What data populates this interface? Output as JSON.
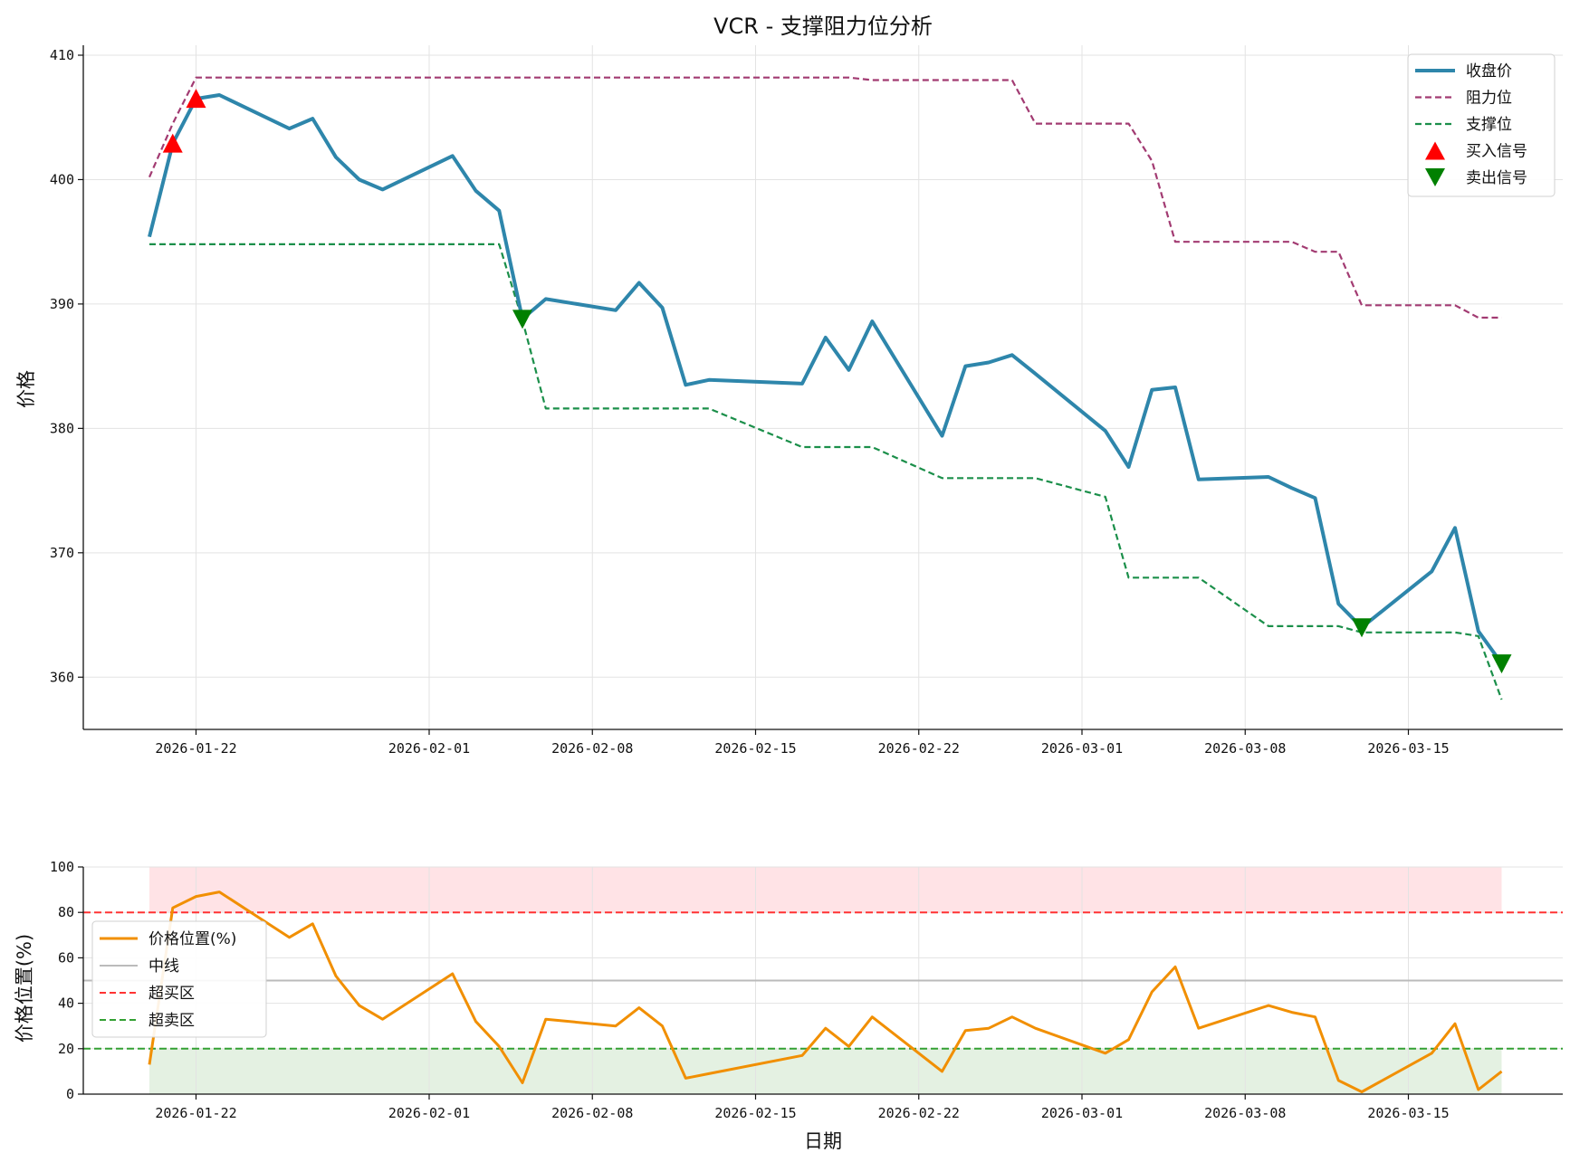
{
  "chart_data": [
    {
      "type": "line",
      "title": "VCR - 支撑阻力位分析",
      "xlabel": "",
      "ylabel": "价格",
      "x_tick_labels": [
        "2026-01-22",
        "2026-02-01",
        "2026-02-08",
        "2026-02-15",
        "2026-02-22",
        "2026-03-01",
        "2026-03-08",
        "2026-03-15"
      ],
      "y_tick_labels": [
        "360",
        "370",
        "380",
        "390",
        "400",
        "410"
      ],
      "ylim": [
        355.8,
        410.8
      ],
      "grid": true,
      "legend_position": "top-right",
      "dates": [
        "2026-01-20",
        "2026-01-21",
        "2026-01-22",
        "2026-01-23",
        "2026-01-26",
        "2026-01-27",
        "2026-01-28",
        "2026-01-29",
        "2026-01-30",
        "2026-02-02",
        "2026-02-03",
        "2026-02-04",
        "2026-02-05",
        "2026-02-06",
        "2026-02-09",
        "2026-02-10",
        "2026-02-11",
        "2026-02-12",
        "2026-02-13",
        "2026-02-17",
        "2026-02-18",
        "2026-02-19",
        "2026-02-20",
        "2026-02-23",
        "2026-02-24",
        "2026-02-25",
        "2026-02-26",
        "2026-02-27",
        "2026-03-02",
        "2026-03-03",
        "2026-03-04",
        "2026-03-05",
        "2026-03-06",
        "2026-03-09",
        "2026-03-10",
        "2026-03-11",
        "2026-03-12",
        "2026-03-13",
        "2026-03-16",
        "2026-03-17",
        "2026-03-18",
        "2026-03-19"
      ],
      "series": [
        {
          "name": "收盘价",
          "color": "#2e86ab",
          "style": "solid",
          "values": [
            395.4,
            402.9,
            406.5,
            406.8,
            404.1,
            404.9,
            401.8,
            400.0,
            399.2,
            401.9,
            399.1,
            397.5,
            388.8,
            390.4,
            389.5,
            391.7,
            389.7,
            383.5,
            383.9,
            383.6,
            387.3,
            384.7,
            388.6,
            379.4,
            385.0,
            385.3,
            385.9,
            384.4,
            379.8,
            376.9,
            383.1,
            383.3,
            375.9,
            376.1,
            375.2,
            374.4,
            365.9,
            364.0,
            368.5,
            372.0,
            363.7,
            361.1
          ]
        },
        {
          "name": "阻力位",
          "color": "#a23b72",
          "style": "dashed",
          "values": [
            400.2,
            404.5,
            408.2,
            408.2,
            408.2,
            408.2,
            408.2,
            408.2,
            408.2,
            408.2,
            408.2,
            408.2,
            408.2,
            408.2,
            408.2,
            408.2,
            408.2,
            408.2,
            408.2,
            408.2,
            408.2,
            408.2,
            408.0,
            408.0,
            408.0,
            408.0,
            408.0,
            404.5,
            404.5,
            404.5,
            401.5,
            395.0,
            395.0,
            395.0,
            395.0,
            394.2,
            394.2,
            389.9,
            389.9,
            389.9,
            388.9,
            388.9
          ]
        },
        {
          "name": "支撑位",
          "color": "#1b8f4a",
          "style": "dashed",
          "values": [
            394.8,
            394.8,
            394.8,
            394.8,
            394.8,
            394.8,
            394.8,
            394.8,
            394.8,
            394.8,
            394.8,
            394.8,
            388.7,
            381.6,
            381.6,
            381.6,
            381.6,
            381.6,
            381.6,
            378.5,
            378.5,
            378.5,
            378.5,
            376.0,
            376.0,
            376.0,
            376.0,
            376.0,
            374.5,
            368.0,
            368.0,
            368.0,
            368.0,
            364.1,
            364.1,
            364.1,
            364.1,
            363.6,
            363.6,
            363.6,
            363.3,
            358.2
          ]
        }
      ],
      "buy_signals": {
        "name": "买入信号",
        "color": "#ff0000",
        "dates": [
          "2026-01-21",
          "2026-01-22"
        ],
        "values": [
          402.9,
          406.5
        ]
      },
      "sell_signals": {
        "name": "卖出信号",
        "color": "#008000",
        "dates": [
          "2026-02-05",
          "2026-03-13",
          "2026-03-19"
        ],
        "values": [
          388.8,
          364.0,
          361.1
        ]
      }
    },
    {
      "type": "line",
      "title": "",
      "xlabel": "日期",
      "ylabel": "价格位置(%)",
      "x_tick_labels": [
        "2026-01-22",
        "2026-02-01",
        "2026-02-08",
        "2026-02-15",
        "2026-02-22",
        "2026-03-01",
        "2026-03-08",
        "2026-03-15"
      ],
      "y_tick_labels": [
        "0",
        "20",
        "40",
        "60",
        "80",
        "100"
      ],
      "ylim": [
        0,
        100
      ],
      "grid": true,
      "legend_position": "center-left",
      "series": [
        {
          "name": "价格位置(%)",
          "color": "#f18f01",
          "style": "solid",
          "values": [
            13,
            82,
            87,
            89,
            69,
            75,
            52,
            39,
            33,
            53,
            32,
            21,
            5,
            33,
            30,
            38,
            30,
            7,
            9,
            17,
            29,
            21,
            34,
            10,
            28,
            29,
            34,
            29,
            18,
            24,
            45,
            56,
            29,
            39,
            36,
            34,
            6,
            1,
            18,
            31,
            2,
            10
          ]
        }
      ],
      "reference_lines": [
        {
          "name": "中线",
          "value": 50,
          "color": "#bbbbbb",
          "style": "solid"
        },
        {
          "name": "超买区",
          "value": 80,
          "color": "#ff3333",
          "style": "dashed"
        },
        {
          "name": "超卖区",
          "value": 20,
          "color": "#33a033",
          "style": "dashed"
        }
      ],
      "zones": [
        {
          "from": 80,
          "to": 100,
          "color": "#ffe3e6"
        },
        {
          "from": 0,
          "to": 20,
          "color": "#e4f1e2"
        }
      ]
    }
  ]
}
